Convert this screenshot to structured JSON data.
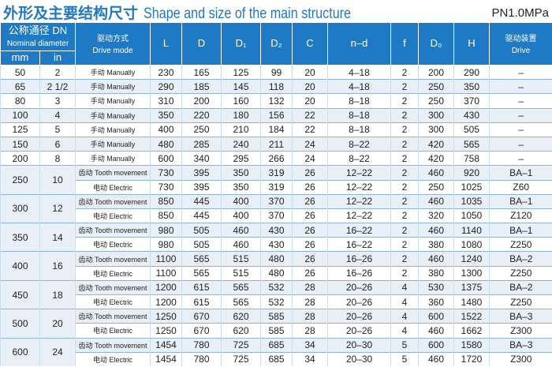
{
  "header": {
    "title_cn": "外形及主要结构尺寸",
    "title_en": "Shape and size of the main structure",
    "pressure": "PN1.0MPa"
  },
  "table": {
    "columns": {
      "dn_cn": "公称通径 DN",
      "dn_en": "Nominal diameter",
      "mm": "mm",
      "in": "in",
      "mode_cn": "驱动方式",
      "mode_en": "Drive mode",
      "dims": [
        "L",
        "D",
        "D₁",
        "D₂",
        "C",
        "n–d",
        "f",
        "D₀",
        "H"
      ],
      "drive_cn": "驱动装置",
      "drive_en": "Drive"
    },
    "groups": [
      {
        "mm": "50",
        "in": "2",
        "lines": [
          [
            "手动 Manually",
            "230",
            "165",
            "125",
            "99",
            "20",
            "4–18",
            "2",
            "200",
            "290",
            "–"
          ]
        ]
      },
      {
        "mm": "65",
        "in": "2 1/2",
        "lines": [
          [
            "手动 Manually",
            "290",
            "185",
            "145",
            "118",
            "20",
            "4–18",
            "2",
            "250",
            "350",
            "–"
          ]
        ]
      },
      {
        "mm": "80",
        "in": "3",
        "lines": [
          [
            "手动 Manually",
            "310",
            "200",
            "160",
            "132",
            "20",
            "8–18",
            "2",
            "250",
            "370",
            "–"
          ]
        ]
      },
      {
        "mm": "100",
        "in": "4",
        "lines": [
          [
            "手动 Manually",
            "350",
            "220",
            "180",
            "156",
            "22",
            "8–18",
            "2",
            "300",
            "430",
            "–"
          ]
        ]
      },
      {
        "mm": "125",
        "in": "5",
        "lines": [
          [
            "手动 Manually",
            "400",
            "250",
            "210",
            "184",
            "22",
            "8–18",
            "2",
            "300",
            "505",
            "–"
          ]
        ]
      },
      {
        "mm": "150",
        "in": "6",
        "lines": [
          [
            "手动 Manually",
            "480",
            "285",
            "240",
            "211",
            "24",
            "8–22",
            "2",
            "420",
            "565",
            "–"
          ]
        ]
      },
      {
        "mm": "200",
        "in": "8",
        "lines": [
          [
            "手动 Manually",
            "600",
            "340",
            "295",
            "266",
            "24",
            "8–22",
            "2",
            "420",
            "758",
            "–"
          ]
        ]
      },
      {
        "mm": "250",
        "in": "10",
        "lines": [
          [
            "齿动 Tooth movement",
            "730",
            "395",
            "350",
            "319",
            "26",
            "12–22",
            "2",
            "460",
            "920",
            "BA–1"
          ],
          [
            "电动 Electric",
            "730",
            "395",
            "350",
            "319",
            "26",
            "12–22",
            "2",
            "250",
            "1025",
            "Z60"
          ]
        ]
      },
      {
        "mm": "300",
        "in": "12",
        "lines": [
          [
            "齿动 Tooth movement",
            "850",
            "445",
            "400",
            "370",
            "26",
            "12–22",
            "2",
            "460",
            "1035",
            "BA–1"
          ],
          [
            "电动 Electric",
            "850",
            "445",
            "400",
            "370",
            "26",
            "12–22",
            "2",
            "320",
            "1050",
            "Z120"
          ]
        ]
      },
      {
        "mm": "350",
        "in": "14",
        "lines": [
          [
            "齿动 Tooth movement",
            "980",
            "505",
            "460",
            "430",
            "26",
            "16–22",
            "2",
            "460",
            "1140",
            "BA–1"
          ],
          [
            "电动 Electric",
            "980",
            "505",
            "460",
            "430",
            "26",
            "16–22",
            "2",
            "380",
            "1080",
            "Z250"
          ]
        ]
      },
      {
        "mm": "400",
        "in": "16",
        "lines": [
          [
            "齿动 Tooth movement",
            "1100",
            "565",
            "515",
            "480",
            "26",
            "16–26",
            "2",
            "460",
            "1240",
            "BA–2"
          ],
          [
            "电动 Electric",
            "1100",
            "565",
            "515",
            "480",
            "26",
            "16–26",
            "2",
            "380",
            "1300",
            "Z250"
          ]
        ]
      },
      {
        "mm": "450",
        "in": "18",
        "lines": [
          [
            "齿动 Tooth movement",
            "1200",
            "615",
            "565",
            "532",
            "28",
            "20–26",
            "4",
            "530",
            "1375",
            "BA–2"
          ],
          [
            "电动 Electric",
            "1200",
            "615",
            "565",
            "532",
            "28",
            "20–26",
            "4",
            "360",
            "1480",
            "Z250"
          ]
        ]
      },
      {
        "mm": "500",
        "in": "20",
        "lines": [
          [
            "齿动 Tooth movement",
            "1250",
            "670",
            "620",
            "585",
            "28",
            "20–26",
            "4",
            "600",
            "1522",
            "BA–3"
          ],
          [
            "电动 Electric",
            "1250",
            "670",
            "620",
            "585",
            "28",
            "20–26",
            "4",
            "460",
            "1662",
            "Z300"
          ]
        ]
      },
      {
        "mm": "600",
        "in": "24",
        "lines": [
          [
            "齿动 Tooth movement",
            "1454",
            "780",
            "725",
            "685",
            "34",
            "20–30",
            "5",
            "600",
            "1580",
            "BA–3"
          ],
          [
            "电动 Electric",
            "1454",
            "780",
            "725",
            "685",
            "34",
            "20–30",
            "5",
            "460",
            "1720",
            "Z300"
          ]
        ]
      }
    ]
  }
}
